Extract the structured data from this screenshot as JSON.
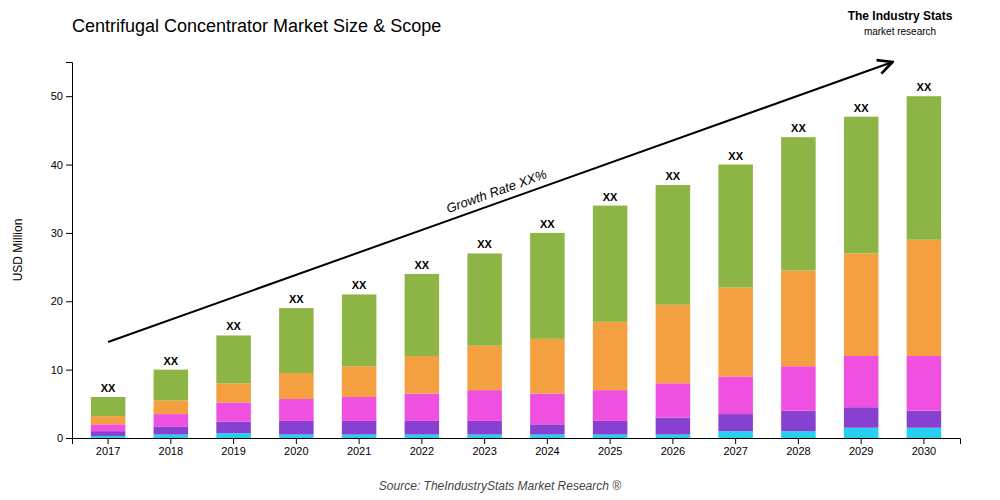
{
  "chart_data": {
    "type": "bar",
    "stacked": true,
    "grid": false,
    "title": "Centrifugal Concentrator Market Size & Scope",
    "y_label": "USD Million",
    "categories": [
      "2017",
      "2018",
      "2019",
      "2020",
      "2021",
      "2022",
      "2023",
      "2024",
      "2025",
      "2026",
      "2027",
      "2028",
      "2029",
      "2030"
    ],
    "series": [
      {
        "color": "#28d0f0",
        "values": [
          0.3,
          0.5,
          0.7,
          0.5,
          0.5,
          0.5,
          0.5,
          0.5,
          0.5,
          0.5,
          1.0,
          1.0,
          1.5,
          1.5
        ]
      },
      {
        "color": "#8840d0",
        "values": [
          0.7,
          1.2,
          1.7,
          2.0,
          2.0,
          2.0,
          2.0,
          1.5,
          2.0,
          2.5,
          2.5,
          3.0,
          3.0,
          2.5
        ]
      },
      {
        "color": "#f050e0",
        "values": [
          1.0,
          1.8,
          2.8,
          3.2,
          3.5,
          4.0,
          4.5,
          4.5,
          4.5,
          5.0,
          5.5,
          6.5,
          7.5,
          8.0
        ]
      },
      {
        "color": "#f5a040",
        "values": [
          1.2,
          2.0,
          2.8,
          3.8,
          4.5,
          5.5,
          6.5,
          8.0,
          10.0,
          11.5,
          13.0,
          14.0,
          15.0,
          17.0
        ]
      },
      {
        "color": "#8db545",
        "values": [
          2.8,
          4.5,
          7.0,
          9.5,
          10.5,
          12.0,
          13.5,
          15.5,
          17.0,
          17.5,
          18.0,
          19.5,
          20.0,
          21.0
        ]
      }
    ],
    "ylim": [
      0,
      55
    ],
    "yticks": [
      0,
      10,
      20,
      30,
      40,
      50
    ],
    "bar_label": "XX",
    "growth_label": "Growth Rate XX%",
    "source": "Source: TheIndustryStats Market Research ®",
    "logo": [
      "The Industry Stats",
      "market research"
    ]
  }
}
